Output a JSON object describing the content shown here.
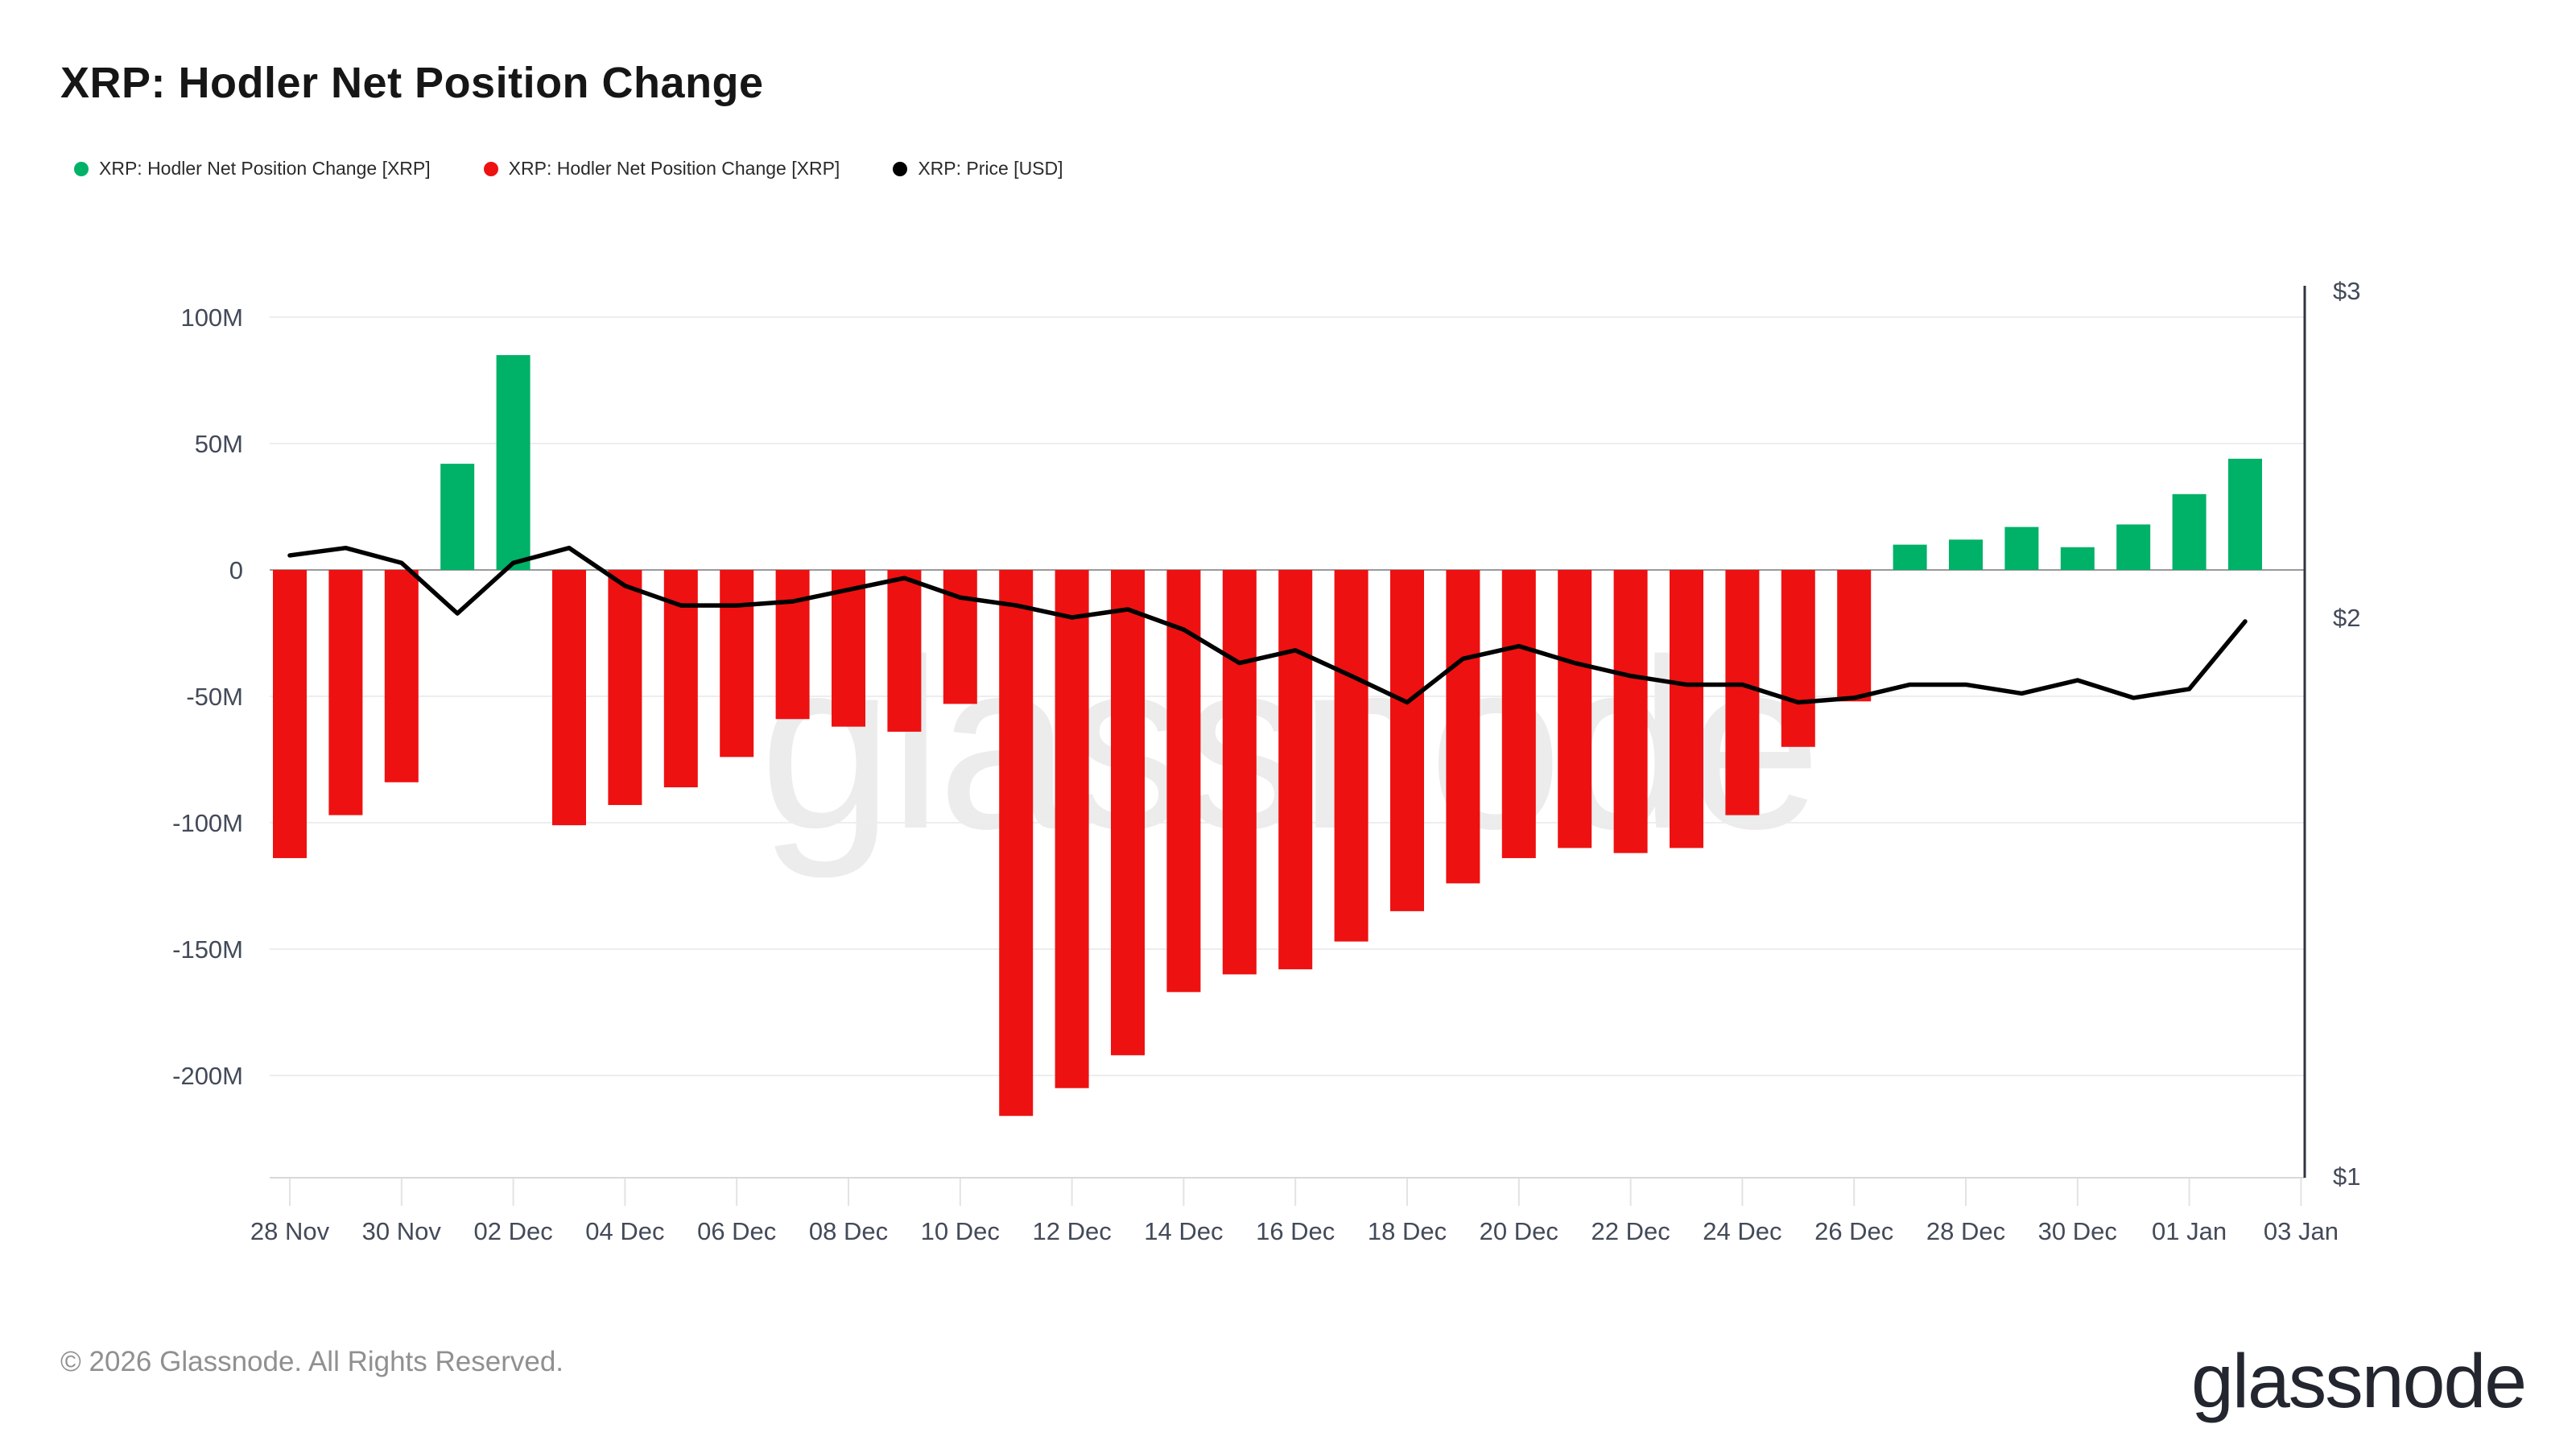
{
  "title": "XRP: Hodler Net Position Change",
  "legend": [
    {
      "label": "XRP: Hodler Net Position Change [XRP]",
      "color": "#00b168"
    },
    {
      "label": "XRP: Hodler Net Position Change [XRP]",
      "color": "#ee1111"
    },
    {
      "label": "XRP: Price [USD]",
      "color": "#000000"
    }
  ],
  "watermark": "glassnode",
  "footer": {
    "copyright": "© 2026 Glassnode. All Rights Reserved.",
    "logo": "glassnode"
  },
  "colors": {
    "positive_bar": "#00b168",
    "negative_bar": "#ee1111",
    "price_line": "#000000",
    "gridline": "#ededed",
    "zero_line": "#9a9a9a",
    "bottom_axis_line": "#d9d9d9",
    "right_axis_line": "#2f3440",
    "axis_label": "#434a59",
    "watermark": "#000000"
  },
  "chart_data": {
    "type": "bar",
    "title": "XRP: Hodler Net Position Change",
    "categories": [
      "28 Nov",
      "29 Nov",
      "30 Nov",
      "01 Dec",
      "02 Dec",
      "03 Dec",
      "04 Dec",
      "05 Dec",
      "06 Dec",
      "07 Dec",
      "08 Dec",
      "09 Dec",
      "10 Dec",
      "11 Dec",
      "12 Dec",
      "13 Dec",
      "14 Dec",
      "15 Dec",
      "16 Dec",
      "17 Dec",
      "18 Dec",
      "19 Dec",
      "20 Dec",
      "21 Dec",
      "22 Dec",
      "23 Dec",
      "24 Dec",
      "25 Dec",
      "26 Dec",
      "27 Dec",
      "28 Dec",
      "29 Dec",
      "30 Dec",
      "31 Dec",
      "01 Jan",
      "02 Jan"
    ],
    "series": [
      {
        "name": "XRP: Hodler Net Position Change [XRP]",
        "type": "bar",
        "axis": "left",
        "unit": "XRP (millions)",
        "positive_color": "#00b168",
        "negative_color": "#ee1111",
        "values_millions": [
          -114,
          -97,
          -84,
          42,
          85,
          -101,
          -93,
          -86,
          -74,
          -59,
          -62,
          -64,
          -53,
          -216,
          -205,
          -192,
          -167,
          -160,
          -158,
          -147,
          -135,
          -124,
          -114,
          -110,
          -112,
          -110,
          -97,
          -70,
          -52,
          10,
          12,
          17,
          9,
          18,
          30,
          44
        ]
      },
      {
        "name": "XRP: Price [USD]",
        "type": "line",
        "axis": "right",
        "unit": "USD",
        "color": "#000000",
        "values_usd": [
          2.16,
          2.18,
          2.14,
          2.01,
          2.14,
          2.18,
          2.08,
          2.03,
          2.03,
          2.04,
          2.07,
          2.1,
          2.05,
          2.03,
          2.0,
          2.02,
          1.97,
          1.89,
          1.92,
          1.86,
          1.8,
          1.9,
          1.93,
          1.89,
          1.86,
          1.84,
          1.84,
          1.8,
          1.81,
          1.84,
          1.84,
          1.82,
          1.85,
          1.81,
          1.83,
          1.99
        ]
      }
    ],
    "left_axis": {
      "tick_labels": [
        "100M",
        "50M",
        "0",
        "-50M",
        "-100M",
        "-150M",
        "-200M"
      ],
      "tick_values_millions": [
        100,
        50,
        0,
        -50,
        -100,
        -150,
        -200
      ],
      "range_millions": [
        -235,
        110
      ],
      "scale": "linear"
    },
    "right_axis": {
      "tick_labels": [
        "$3",
        "$2",
        "$1"
      ],
      "tick_values_usd": [
        3,
        2,
        1
      ],
      "range_usd": [
        1,
        3
      ],
      "scale": "log"
    },
    "x_axis": {
      "tick_labels": [
        "28 Nov",
        "30 Nov",
        "02 Dec",
        "04 Dec",
        "06 Dec",
        "08 Dec",
        "10 Dec",
        "12 Dec",
        "14 Dec",
        "16 Dec",
        "18 Dec",
        "20 Dec",
        "22 Dec",
        "24 Dec",
        "26 Dec",
        "28 Dec",
        "30 Dec",
        "01 Jan",
        "03 Jan"
      ],
      "tick_day_indices": [
        0,
        2,
        4,
        6,
        8,
        10,
        12,
        14,
        16,
        18,
        20,
        22,
        24,
        26,
        28,
        30,
        32,
        34,
        36
      ]
    },
    "grid": true,
    "legend_position": "top-left"
  }
}
